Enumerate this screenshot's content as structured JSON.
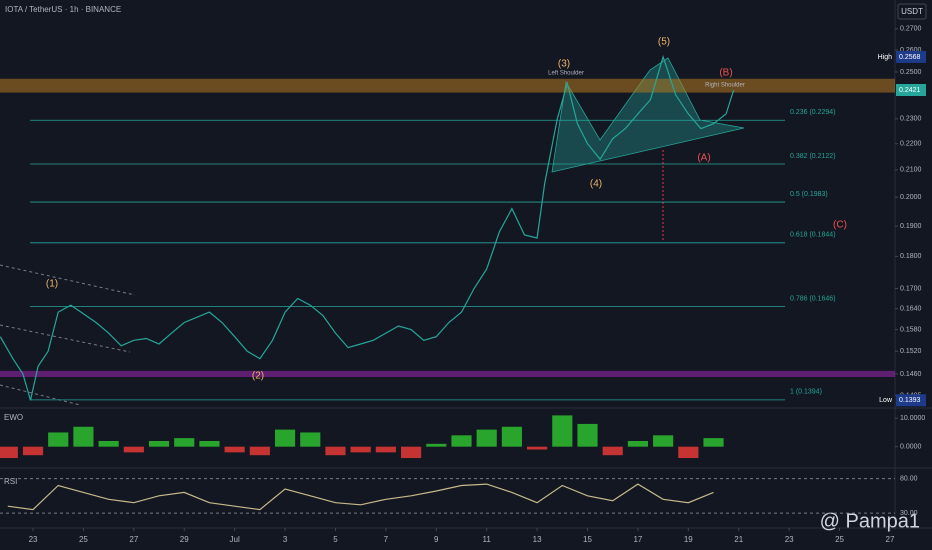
{
  "title": "IOTA / TetherUS · 1h · BINANCE",
  "currency": "USDT",
  "watermark": "@ Pampa1",
  "chart_data": [
    {
      "type": "line",
      "name": "price",
      "log_scale": true,
      "color": "#26a69a",
      "x": [
        -1.3,
        -0.8,
        -0.4,
        -0.1,
        0.2,
        0.6,
        1.0,
        1.5,
        2.0,
        2.5,
        3.0,
        3.5,
        4.0,
        4.5,
        5.0,
        5.5,
        6.0,
        6.5,
        7.0,
        7.5,
        8.0,
        8.5,
        9.0,
        9.5,
        10.0,
        10.5,
        11.0,
        11.5,
        12.0,
        12.5,
        13.0,
        13.5,
        14.0,
        14.5,
        15.0,
        15.5,
        16.0,
        16.5,
        17.0,
        17.5,
        18.0,
        18.5,
        19.0,
        19.5,
        20.0,
        20.3,
        20.8,
        21.2,
        21.6,
        22.0,
        22.5,
        23.0,
        23.5,
        24.0,
        24.5,
        25.0,
        25.5,
        26.0,
        26.5,
        27.0,
        27.5,
        27.8
      ],
      "values": [
        0.156,
        0.15,
        0.146,
        0.1393,
        0.148,
        0.152,
        0.163,
        0.165,
        0.1625,
        0.16,
        0.157,
        0.1535,
        0.155,
        0.1555,
        0.154,
        0.157,
        0.16,
        0.1615,
        0.163,
        0.16,
        0.156,
        0.152,
        0.15,
        0.155,
        0.163,
        0.167,
        0.165,
        0.162,
        0.157,
        0.153,
        0.154,
        0.155,
        0.157,
        0.159,
        0.158,
        0.155,
        0.156,
        0.16,
        0.163,
        0.17,
        0.176,
        0.188,
        0.196,
        0.187,
        0.186,
        0.205,
        0.23,
        0.245,
        0.228,
        0.22,
        0.214,
        0.222,
        0.226,
        0.232,
        0.238,
        0.2568,
        0.24,
        0.232,
        0.226,
        0.228,
        0.232,
        0.2421
      ],
      "xlim": [
        -1.31,
        34.2
      ],
      "ylim": [
        0.1374,
        0.2842
      ],
      "xticks": [
        {
          "value": 0,
          "label": "23"
        },
        {
          "value": 2,
          "label": "25"
        },
        {
          "value": 4,
          "label": "27"
        },
        {
          "value": 6,
          "label": "29"
        },
        {
          "value": 8,
          "label": "Jul"
        },
        {
          "value": 10,
          "label": "3"
        },
        {
          "value": 12,
          "label": "5"
        },
        {
          "value": 14,
          "label": "7"
        },
        {
          "value": 16,
          "label": "9"
        },
        {
          "value": 18,
          "label": "11"
        },
        {
          "value": 20,
          "label": "13"
        },
        {
          "value": 22,
          "label": "15"
        },
        {
          "value": 24,
          "label": "17"
        },
        {
          "value": 26,
          "label": "19"
        },
        {
          "value": 28,
          "label": "21"
        },
        {
          "value": 30,
          "label": "23"
        },
        {
          "value": 32,
          "label": "25"
        },
        {
          "value": 34,
          "label": "27"
        }
      ],
      "yticks": [
        {
          "value": 0.27,
          "label": "0.2700"
        },
        {
          "value": 0.26,
          "label": "0.2600"
        },
        {
          "value": 0.25,
          "label": "0.2500"
        },
        {
          "value": 0.23,
          "label": "0.2300"
        },
        {
          "value": 0.22,
          "label": "0.2200"
        },
        {
          "value": 0.21,
          "label": "0.2100"
        },
        {
          "value": 0.2,
          "label": "0.2000"
        },
        {
          "value": 0.19,
          "label": "0.1900"
        },
        {
          "value": 0.18,
          "label": "0.1800"
        },
        {
          "value": 0.17,
          "label": "0.1700"
        },
        {
          "value": 0.164,
          "label": "0.1640"
        },
        {
          "value": 0.158,
          "label": "0.1580"
        },
        {
          "value": 0.152,
          "label": "0.1520"
        },
        {
          "value": 0.146,
          "label": "0.1460"
        },
        {
          "value": 0.1405,
          "label": "0.1405"
        }
      ],
      "fib_levels": [
        {
          "label": "0.236 (0.2294)",
          "value": 0.2294
        },
        {
          "label": "0.382 (0.2122)",
          "value": 0.2122
        },
        {
          "label": "0.5 (0.1983)",
          "value": 0.1983
        },
        {
          "label": "0.618 (0.1844)",
          "value": 0.1844
        },
        {
          "label": "0.786 (0.1646)",
          "value": 0.1646
        },
        {
          "label": "1 (0.1394)",
          "value": 0.1394
        }
      ],
      "zones": [
        {
          "from": 0.241,
          "to": 0.247,
          "color": "#b5781f"
        },
        {
          "from": 0.1452,
          "to": 0.1468,
          "color": "#9c27b0"
        }
      ],
      "high": {
        "label": "High",
        "value": 0.2568
      },
      "low": {
        "label": "Low",
        "value": 0.1393
      },
      "last": 0.2421,
      "annotations": [
        "(1)",
        "(2)",
        "(3)",
        "(4)",
        "(5)",
        "(A)",
        "(B)",
        "(C)",
        "Left Shoulder",
        "Right Shoulder"
      ]
    },
    {
      "type": "bar",
      "name": "EWO",
      "x": [
        -1,
        0,
        1,
        2,
        3,
        4,
        5,
        6,
        7,
        8,
        9,
        10,
        11,
        12,
        13,
        14,
        15,
        16,
        17,
        18,
        19,
        20,
        21,
        22,
        23,
        24,
        25,
        26,
        27
      ],
      "values": [
        -4,
        -3,
        5,
        7,
        2,
        -2,
        2,
        3,
        2,
        -2,
        -3,
        6,
        5,
        -3,
        -2,
        -2,
        -4,
        1,
        4,
        6,
        7,
        -1,
        11,
        8,
        -3,
        2,
        4,
        -4,
        3
      ],
      "ylim": [
        -6.8,
        12.9
      ],
      "yticks": [
        {
          "value": 10,
          "label": "10.0000"
        },
        {
          "value": 0,
          "label": "0.0000"
        }
      ],
      "up_color": "#2ebd2e",
      "down_color": "#e53935"
    },
    {
      "type": "line",
      "name": "RSI",
      "x": [
        -1,
        0,
        1,
        2,
        3,
        4,
        5,
        6,
        7,
        8,
        9,
        10,
        11,
        12,
        13,
        14,
        15,
        16,
        17,
        18,
        19,
        20,
        21,
        22,
        23,
        24,
        25,
        26,
        27
      ],
      "values": [
        40,
        35,
        70,
        60,
        50,
        45,
        55,
        60,
        45,
        40,
        35,
        65,
        55,
        45,
        42,
        50,
        55,
        62,
        70,
        72,
        60,
        45,
        70,
        55,
        48,
        72,
        50,
        45,
        60
      ],
      "ylim": [
        11.25,
        92.5
      ],
      "yticks": [
        {
          "value": 80,
          "label": "80.00"
        },
        {
          "value": 30,
          "label": "30.00"
        }
      ],
      "color": "#c8b98a"
    }
  ]
}
